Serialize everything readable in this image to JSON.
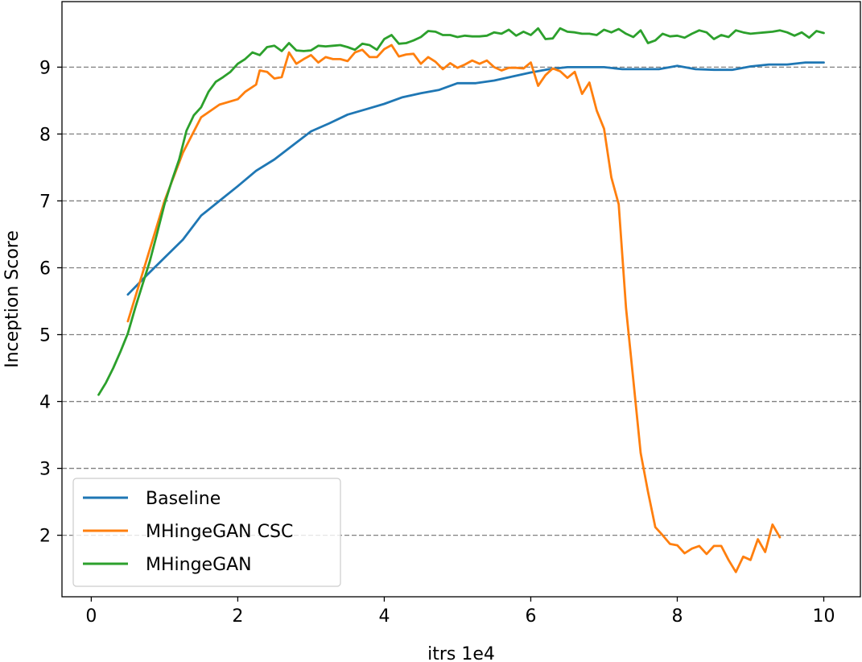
{
  "chart_data": {
    "type": "line",
    "title": "",
    "xlabel": "itrs 1e4",
    "ylabel": "Inception Score",
    "xlim": [
      -0.4,
      10.5
    ],
    "ylim": [
      1.08,
      9.98
    ],
    "xticks": [
      0,
      2,
      4,
      6,
      8,
      10
    ],
    "yticks": [
      2,
      3,
      4,
      5,
      6,
      7,
      8,
      9
    ],
    "grid": "horizontal dashed",
    "legend_position": "lower-left",
    "series": [
      {
        "name": "Baseline",
        "color": "#1f77b4",
        "x": [
          0.5,
          0.75,
          1.0,
          1.25,
          1.5,
          1.75,
          2.0,
          2.25,
          2.5,
          2.75,
          3.0,
          3.25,
          3.5,
          3.75,
          4.0,
          4.25,
          4.5,
          4.75,
          5.0,
          5.25,
          5.5,
          5.75,
          6.0,
          6.25,
          6.5,
          6.75,
          7.0,
          7.25,
          7.5,
          7.75,
          8.0,
          8.25,
          8.5,
          8.75,
          9.0,
          9.25,
          9.5,
          9.75,
          10.0
        ],
        "y": [
          5.6,
          5.88,
          6.15,
          6.42,
          6.78,
          7.0,
          7.22,
          7.45,
          7.62,
          7.83,
          8.04,
          8.16,
          8.29,
          8.37,
          8.45,
          8.55,
          8.61,
          8.66,
          8.76,
          8.76,
          8.8,
          8.86,
          8.92,
          8.97,
          9.0,
          9.0,
          9.0,
          8.97,
          8.97,
          8.97,
          9.02,
          8.97,
          8.96,
          8.96,
          9.01,
          9.04,
          9.04,
          9.07,
          9.07
        ]
      },
      {
        "name": "MHingeGAN CSC",
        "color": "#ff7f0e",
        "x": [
          0.5,
          0.75,
          1.0,
          1.25,
          1.5,
          1.75,
          2.0,
          2.1,
          2.25,
          2.3,
          2.4,
          2.5,
          2.6,
          2.7,
          2.8,
          2.9,
          3.0,
          3.1,
          3.2,
          3.3,
          3.4,
          3.5,
          3.6,
          3.7,
          3.8,
          3.9,
          4.0,
          4.1,
          4.2,
          4.3,
          4.4,
          4.5,
          4.6,
          4.7,
          4.8,
          4.9,
          5.0,
          5.1,
          5.2,
          5.3,
          5.4,
          5.5,
          5.6,
          5.7,
          5.8,
          5.9,
          6.0,
          6.1,
          6.2,
          6.3,
          6.4,
          6.5,
          6.6,
          6.7,
          6.8,
          6.9,
          7.0,
          7.1,
          7.2,
          7.3,
          7.4,
          7.5,
          7.6,
          7.7,
          7.8,
          7.9,
          8.0,
          8.1,
          8.2,
          8.3,
          8.4,
          8.5,
          8.6,
          8.7,
          8.8,
          8.9,
          9.0,
          9.1,
          9.2,
          9.3,
          9.4
        ],
        "y": [
          5.2,
          6.1,
          7.0,
          7.72,
          8.25,
          8.44,
          8.52,
          8.63,
          8.74,
          8.95,
          8.93,
          8.83,
          8.85,
          9.22,
          9.05,
          9.12,
          9.18,
          9.07,
          9.15,
          9.12,
          9.12,
          9.09,
          9.22,
          9.26,
          9.15,
          9.15,
          9.27,
          9.33,
          9.16,
          9.19,
          9.2,
          9.05,
          9.15,
          9.08,
          8.97,
          9.06,
          8.99,
          9.04,
          9.1,
          9.05,
          9.1,
          9.0,
          8.95,
          8.99,
          8.99,
          8.98,
          9.07,
          8.72,
          8.88,
          8.98,
          8.94,
          8.84,
          8.93,
          8.6,
          8.77,
          8.35,
          8.08,
          7.35,
          6.95,
          5.4,
          4.32,
          3.23,
          2.65,
          2.12,
          2.0,
          1.87,
          1.85,
          1.73,
          1.8,
          1.84,
          1.72,
          1.84,
          1.84,
          1.63,
          1.45,
          1.68,
          1.63,
          1.94,
          1.75,
          2.16,
          1.97
        ]
      },
      {
        "name": "MHingeGAN",
        "color": "#2ca02c",
        "x": [
          0.1,
          0.2,
          0.3,
          0.4,
          0.5,
          0.6,
          0.7,
          0.8,
          0.9,
          1.0,
          1.1,
          1.2,
          1.3,
          1.4,
          1.5,
          1.6,
          1.7,
          1.8,
          1.9,
          2.0,
          2.1,
          2.2,
          2.3,
          2.4,
          2.5,
          2.6,
          2.7,
          2.8,
          2.9,
          3.0,
          3.1,
          3.2,
          3.3,
          3.4,
          3.5,
          3.6,
          3.7,
          3.8,
          3.9,
          4.0,
          4.1,
          4.2,
          4.3,
          4.4,
          4.5,
          4.6,
          4.7,
          4.8,
          4.9,
          5.0,
          5.1,
          5.2,
          5.3,
          5.4,
          5.5,
          5.6,
          5.7,
          5.8,
          5.9,
          6.0,
          6.1,
          6.2,
          6.3,
          6.4,
          6.5,
          6.6,
          6.7,
          6.8,
          6.9,
          7.0,
          7.1,
          7.2,
          7.3,
          7.4,
          7.5,
          7.6,
          7.7,
          7.8,
          7.9,
          8.0,
          8.1,
          8.2,
          8.3,
          8.4,
          8.5,
          8.6,
          8.7,
          8.8,
          8.9,
          9.0,
          9.1,
          9.2,
          9.3,
          9.4,
          9.5,
          9.6,
          9.7,
          9.8,
          9.9,
          10.0
        ],
        "y": [
          4.1,
          4.28,
          4.5,
          4.75,
          5.02,
          5.4,
          5.75,
          6.1,
          6.52,
          6.95,
          7.3,
          7.62,
          8.05,
          8.28,
          8.4,
          8.63,
          8.78,
          8.85,
          8.93,
          9.05,
          9.12,
          9.22,
          9.18,
          9.3,
          9.32,
          9.24,
          9.36,
          9.25,
          9.24,
          9.25,
          9.32,
          9.31,
          9.32,
          9.33,
          9.3,
          9.26,
          9.35,
          9.33,
          9.26,
          9.42,
          9.48,
          9.35,
          9.36,
          9.4,
          9.45,
          9.54,
          9.53,
          9.48,
          9.48,
          9.45,
          9.47,
          9.46,
          9.46,
          9.47,
          9.52,
          9.5,
          9.56,
          9.47,
          9.53,
          9.48,
          9.58,
          9.42,
          9.43,
          9.58,
          9.53,
          9.52,
          9.5,
          9.5,
          9.48,
          9.56,
          9.52,
          9.57,
          9.5,
          9.45,
          9.55,
          9.36,
          9.4,
          9.5,
          9.46,
          9.47,
          9.44,
          9.5,
          9.55,
          9.52,
          9.42,
          9.48,
          9.45,
          9.55,
          9.52,
          9.5,
          9.51,
          9.52,
          9.53,
          9.55,
          9.52,
          9.47,
          9.52,
          9.44,
          9.54,
          9.51
        ]
      }
    ]
  }
}
